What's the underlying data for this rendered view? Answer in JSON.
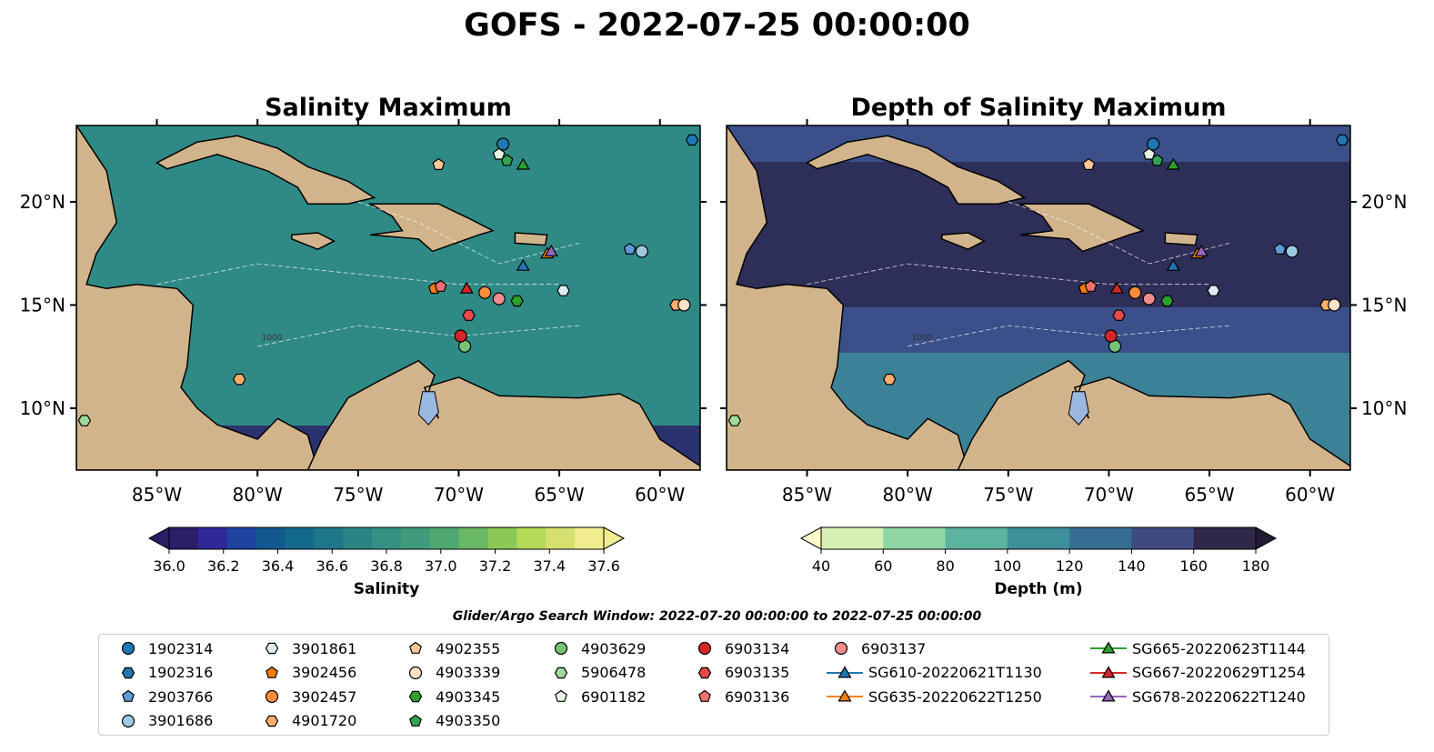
{
  "title": "GOFS - 2022-07-25 00:00:00",
  "panels": [
    {
      "title": "Salinity Maximum",
      "colorbar": {
        "label": "Salinity",
        "ticks": [
          "36.0",
          "36.2",
          "36.4",
          "36.6",
          "36.8",
          "37.0",
          "37.2",
          "37.4",
          "37.6"
        ],
        "colors": [
          "#2b1d68",
          "#2f289a",
          "#1e44a0",
          "#11598f",
          "#136a8a",
          "#1d7788",
          "#2a8385",
          "#358f82",
          "#3f9b7c",
          "#4ea872",
          "#68b864",
          "#8bc957",
          "#b5da5a",
          "#d5e06f",
          "#f1ec8e"
        ]
      }
    },
    {
      "title": "Depth of Salinity Maximum",
      "colorbar": {
        "label": "Depth (m)",
        "ticks": [
          "40",
          "60",
          "80",
          "100",
          "120",
          "140",
          "160",
          "180"
        ],
        "colors": [
          "#d6efb3",
          "#8ed6a3",
          "#5cb49f",
          "#3d8f9a",
          "#356d93",
          "#3f4a82",
          "#2f2848"
        ],
        "extend_low": "#fdfccb",
        "extend_high": "#231a33"
      }
    }
  ],
  "lon_ticks": [
    "85°W",
    "80°W",
    "75°W",
    "70°W",
    "65°W",
    "60°W"
  ],
  "lat_ticks": [
    "20°N",
    "15°N",
    "10°N"
  ],
  "contour_label": "1000",
  "search_window": "Glider/Argo Search Window: 2022-07-20 00:00:00 to 2022-07-25 00:00:00",
  "legend": [
    {
      "label": "1902314",
      "marker": "circle",
      "color": "#1f77b4"
    },
    {
      "label": "1902316",
      "marker": "hexagon",
      "color": "#1f77b4"
    },
    {
      "label": "2903766",
      "marker": "pentagon",
      "color": "#5b9bd5"
    },
    {
      "label": "3901686",
      "marker": "circle",
      "color": "#9ecae1"
    },
    {
      "label": "3901861",
      "marker": "hexagon",
      "color": "#deebf7"
    },
    {
      "label": "3902456",
      "marker": "pentagon",
      "color": "#f57c00"
    },
    {
      "label": "3902457",
      "marker": "circle",
      "color": "#fd8d3c"
    },
    {
      "label": "4901720",
      "marker": "hexagon",
      "color": "#fdae6b"
    },
    {
      "label": "4902355",
      "marker": "pentagon",
      "color": "#fdc896"
    },
    {
      "label": "4903339",
      "marker": "circle",
      "color": "#fee3c8"
    },
    {
      "label": "4903345",
      "marker": "hexagon",
      "color": "#2ca02c"
    },
    {
      "label": "4903350",
      "marker": "pentagon",
      "color": "#31a354"
    },
    {
      "label": "4903629",
      "marker": "circle",
      "color": "#74c476"
    },
    {
      "label": "5906478",
      "marker": "hexagon",
      "color": "#a1d99b"
    },
    {
      "label": "6901182",
      "marker": "pentagon",
      "color": "#e5f5e0"
    },
    {
      "label": "6903134",
      "marker": "circle",
      "color": "#d62728"
    },
    {
      "label": "6903135",
      "marker": "hexagon",
      "color": "#e34a4a"
    },
    {
      "label": "6903136",
      "marker": "pentagon",
      "color": "#f07070"
    },
    {
      "label": "6903137",
      "marker": "circle",
      "color": "#f08c8c"
    },
    {
      "label": "SG610-20220621T1130",
      "marker": "triangle-line",
      "color": "#1f77b4"
    },
    {
      "label": "SG635-20220622T1250",
      "marker": "triangle-line",
      "color": "#ff7f0e"
    },
    {
      "label": "SG665-20220623T1144",
      "marker": "triangle-line",
      "color": "#2ca02c"
    },
    {
      "label": "SG667-20220629T1254",
      "marker": "triangle-line",
      "color": "#d62728"
    },
    {
      "label": "SG678-20220622T1240",
      "marker": "triangle-line",
      "color": "#9467bd"
    }
  ],
  "map": {
    "lon_range": [
      -89,
      -58
    ],
    "lat_range": [
      7,
      23.7
    ],
    "land_color": "#d2b48c",
    "lake_color": "#9ab7e0",
    "salinity_color": "#2f8a85",
    "depth_color": "#3b4f8a",
    "markers": [
      {
        "id": "1902314",
        "lon": -67.8,
        "lat": 22.8
      },
      {
        "id": "1902316",
        "lon": -58.4,
        "lat": 23.0
      },
      {
        "id": "2903766",
        "lon": -61.5,
        "lat": 17.7
      },
      {
        "id": "3901686",
        "lon": -60.9,
        "lat": 17.6
      },
      {
        "id": "3901861",
        "lon": -64.8,
        "lat": 15.7
      },
      {
        "id": "3902456",
        "lon": -71.2,
        "lat": 15.8
      },
      {
        "id": "3902457",
        "lon": -68.7,
        "lat": 15.6
      },
      {
        "id": "4901720",
        "lon": -59.2,
        "lat": 15.0
      },
      {
        "id": "4902355",
        "lon": -71.0,
        "lat": 21.8
      },
      {
        "id": "4903339",
        "lon": -58.8,
        "lat": 15.0
      },
      {
        "id": "4903345",
        "lon": -67.1,
        "lat": 15.2
      },
      {
        "id": "4903350",
        "lon": -67.6,
        "lat": 22.0
      },
      {
        "id": "4903629",
        "lon": -69.7,
        "lat": 13.0
      },
      {
        "id": "5906478",
        "lon": -88.6,
        "lat": 9.4
      },
      {
        "id": "6901182",
        "lon": -68.0,
        "lat": 22.3
      },
      {
        "id": "6903134",
        "lon": -69.9,
        "lat": 13.5
      },
      {
        "id": "6903135",
        "lon": -69.5,
        "lat": 14.5
      },
      {
        "id": "6903136",
        "lon": -70.9,
        "lat": 15.9
      },
      {
        "id": "6903137",
        "lon": -68.0,
        "lat": 15.3
      },
      {
        "id": "4901720b",
        "lon": -80.9,
        "lat": 11.4,
        "color": "#fdae6b",
        "marker": "hexagon"
      },
      {
        "id": "SG610-20220621T1130",
        "lon": -66.8,
        "lat": 16.9
      },
      {
        "id": "SG635-20220622T1250",
        "lon": -65.6,
        "lat": 17.5
      },
      {
        "id": "SG665-20220623T1144",
        "lon": -66.8,
        "lat": 21.8
      },
      {
        "id": "SG667-20220629T1254",
        "lon": -69.6,
        "lat": 15.8
      },
      {
        "id": "SG678-20220622T1240",
        "lon": -65.4,
        "lat": 17.6
      }
    ]
  }
}
